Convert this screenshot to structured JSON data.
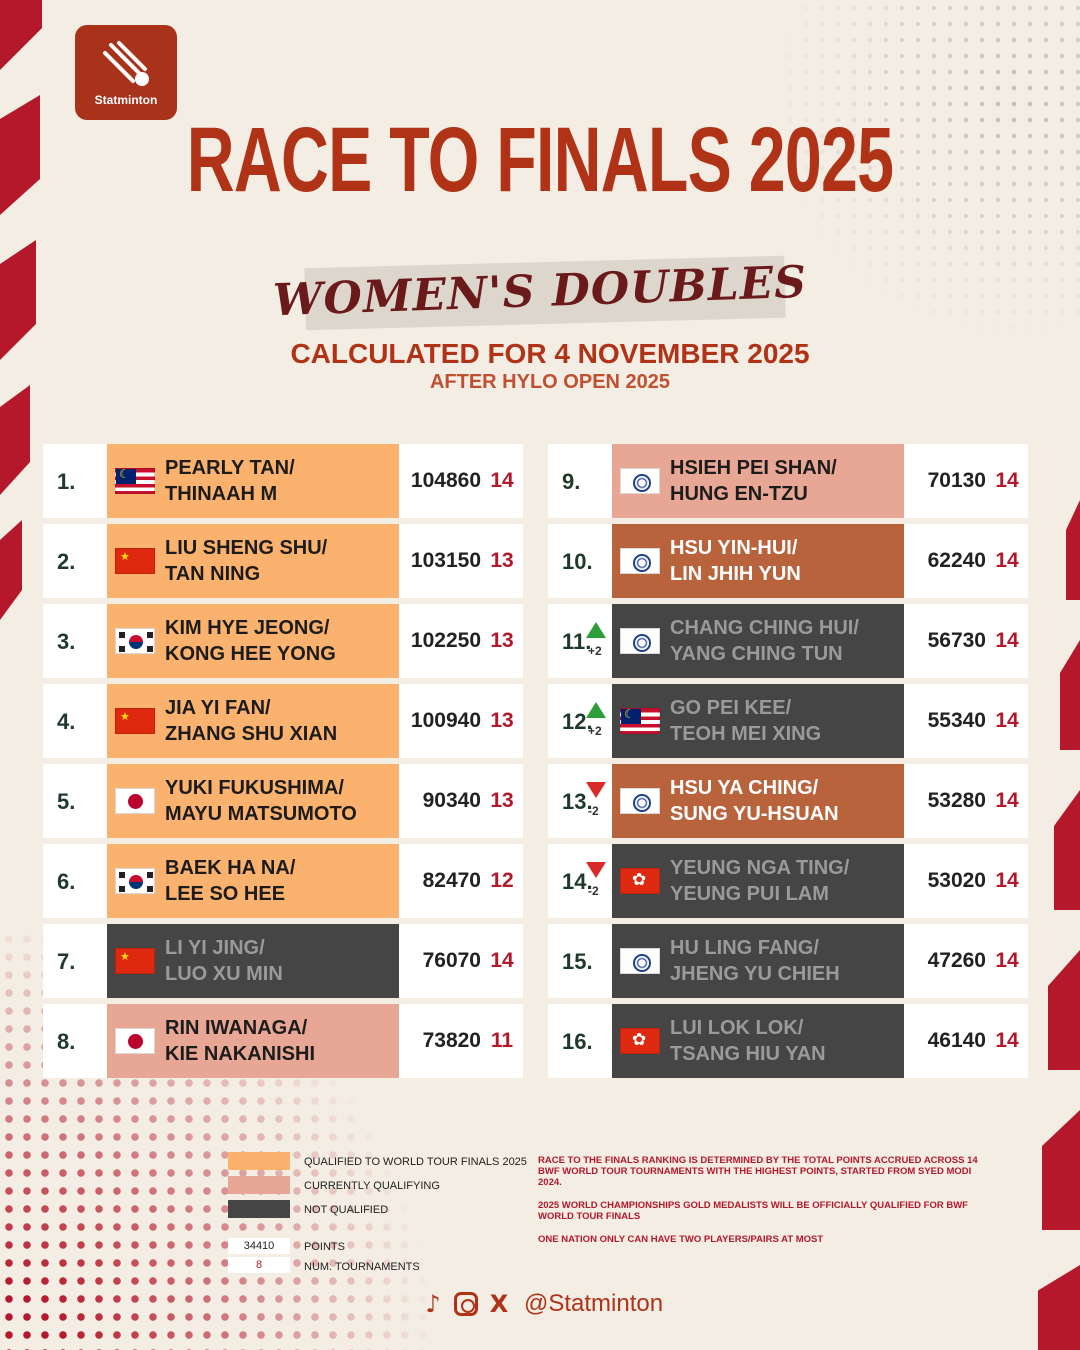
{
  "brand": {
    "name": "Statminton"
  },
  "header": {
    "title": "RACE TO FINALS 2025",
    "subtitle": "WOMEN'S DOUBLES",
    "calculated": "CALCULATED FOR 4 NOVEMBER 2025",
    "after": "AFTER HYLO OPEN 2025"
  },
  "status_colors": {
    "qualified": "#fbb26e",
    "currently_qualifying": "#e8a795",
    "not_qualified": "#454545",
    "other_qualifying": "#b9633c"
  },
  "left_rows": [
    {
      "rank": "1.",
      "flag": "malaysia-flag",
      "names": [
        "PEARLY TAN/",
        "THINAAH M"
      ],
      "points": "104860",
      "tournaments": "14",
      "status": "q",
      "change": ""
    },
    {
      "rank": "2.",
      "flag": "china-flag",
      "names": [
        "LIU SHENG SHU/",
        "TAN NING"
      ],
      "points": "103150",
      "tournaments": "13",
      "status": "q",
      "change": ""
    },
    {
      "rank": "3.",
      "flag": "korea-flag",
      "names": [
        "KIM HYE JEONG/",
        "KONG HEE YONG"
      ],
      "points": "102250",
      "tournaments": "13",
      "status": "q",
      "change": ""
    },
    {
      "rank": "4.",
      "flag": "china-flag",
      "names": [
        "JIA YI FAN/",
        "ZHANG SHU XIAN"
      ],
      "points": "100940",
      "tournaments": "13",
      "status": "q",
      "change": ""
    },
    {
      "rank": "5.",
      "flag": "japan-flag",
      "names": [
        "YUKI FUKUSHIMA/",
        "MAYU MATSUMOTO"
      ],
      "points": "90340",
      "tournaments": "13",
      "status": "q",
      "change": ""
    },
    {
      "rank": "6.",
      "flag": "korea-flag",
      "names": [
        "BAEK HA NA/",
        "LEE SO HEE"
      ],
      "points": "82470",
      "tournaments": "12",
      "status": "q",
      "change": ""
    },
    {
      "rank": "7.",
      "flag": "china-flag",
      "names": [
        "LI YI JING/",
        "LUO XU MIN"
      ],
      "points": "76070",
      "tournaments": "14",
      "status": "n",
      "change": ""
    },
    {
      "rank": "8.",
      "flag": "japan-flag",
      "names": [
        "RIN IWANAGA/",
        "KIE NAKANISHI"
      ],
      "points": "73820",
      "tournaments": "11",
      "status": "c",
      "change": ""
    }
  ],
  "right_rows": [
    {
      "rank": "9.",
      "flag": "chinese-taipei-flag",
      "names": [
        "HSIEH PEI SHAN/",
        "HUNG EN-TZU"
      ],
      "points": "70130",
      "tournaments": "14",
      "status": "c",
      "change": ""
    },
    {
      "rank": "10.",
      "flag": "chinese-taipei-flag",
      "names": [
        "HSU YIN-HUI/",
        "LIN JHIH YUN"
      ],
      "points": "62240",
      "tournaments": "14",
      "status": "o",
      "change": ""
    },
    {
      "rank": "11.",
      "flag": "chinese-taipei-flag",
      "names": [
        "CHANG CHING HUI/",
        "YANG CHING TUN"
      ],
      "points": "56730",
      "tournaments": "14",
      "status": "n",
      "change": "+2",
      "dir": "up"
    },
    {
      "rank": "12.",
      "flag": "malaysia-flag",
      "names": [
        "GO PEI KEE/",
        "TEOH MEI XING"
      ],
      "points": "55340",
      "tournaments": "14",
      "status": "n",
      "change": "+2",
      "dir": "up"
    },
    {
      "rank": "13.",
      "flag": "chinese-taipei-flag",
      "names": [
        "HSU YA CHING/",
        "SUNG YU-HSUAN"
      ],
      "points": "53280",
      "tournaments": "14",
      "status": "o",
      "change": "-2",
      "dir": "down"
    },
    {
      "rank": "14.",
      "flag": "hong-kong-flag",
      "names": [
        "YEUNG NGA TING/",
        "YEUNG PUI LAM"
      ],
      "points": "53020",
      "tournaments": "14",
      "status": "n",
      "change": "-2",
      "dir": "down"
    },
    {
      "rank": "15.",
      "flag": "chinese-taipei-flag",
      "names": [
        "HU LING FANG/",
        "JHENG YU CHIEH"
      ],
      "points": "47260",
      "tournaments": "14",
      "status": "n",
      "change": ""
    },
    {
      "rank": "16.",
      "flag": "hong-kong-flag",
      "names": [
        "LUI LOK LOK/",
        "TSANG HIU YAN"
      ],
      "points": "46140",
      "tournaments": "14",
      "status": "n",
      "change": ""
    }
  ],
  "legend": {
    "qualified": "QUALIFIED TO WORLD TOUR FINALS 2025",
    "currently": "CURRENTLY QUALIFYING",
    "not": "NOT QUALIFIED",
    "points_example": "34410",
    "points_label": "POINTS",
    "tourn_example": "8",
    "tourn_label": "NUM. TOURNAMENTS"
  },
  "notes": [
    "RACE TO THE FINALS RANKING IS DETERMINED BY THE TOTAL POINTS ACCRUED ACROSS 14 BWF WORLD TOUR TOURNAMENTS WITH THE HIGHEST POINTS, STARTED FROM SYED MODI 2024.",
    "2025 WORLD CHAMPIONSHIPS GOLD MEDALISTS WILL BE OFFICIALLY QUALIFIED FOR BWF WORLD TOUR FINALS",
    "ONE NATION ONLY CAN HAVE TWO PLAYERS/PAIRS AT MOST"
  ],
  "social": {
    "handle": "@Statminton",
    "icons": [
      "tiktok-icon",
      "instagram-icon",
      "x-icon"
    ]
  }
}
